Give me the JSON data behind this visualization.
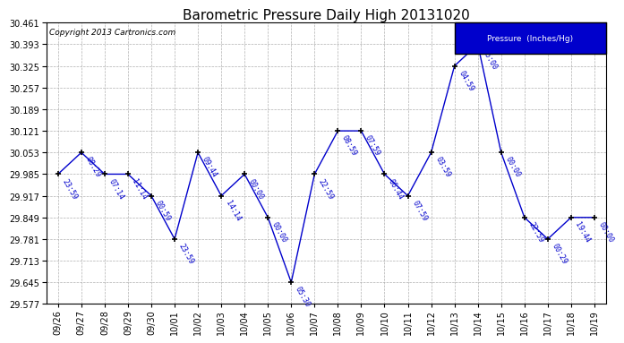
{
  "title": "Barometric Pressure Daily High 20131020",
  "ylabel": "Pressure  (Inches/Hg)",
  "copyright": "Copyright 2013 Cartronics.com",
  "x_labels": [
    "09/26",
    "09/27",
    "09/28",
    "09/29",
    "09/30",
    "10/01",
    "10/02",
    "10/03",
    "10/04",
    "10/05",
    "10/06",
    "10/07",
    "10/08",
    "10/09",
    "10/10",
    "10/11",
    "10/12",
    "10/13",
    "10/14",
    "10/15",
    "10/16",
    "10/17",
    "10/18",
    "10/19"
  ],
  "x_vals": [
    0,
    1,
    2,
    3,
    4,
    5,
    6,
    7,
    8,
    9,
    10,
    11,
    12,
    13,
    14,
    15,
    16,
    17,
    18,
    19,
    20,
    21,
    22,
    23
  ],
  "y_vals": [
    29.985,
    30.053,
    29.985,
    29.985,
    29.917,
    29.781,
    30.053,
    29.917,
    29.985,
    29.849,
    29.645,
    29.985,
    30.121,
    30.121,
    29.985,
    29.917,
    30.053,
    30.325,
    30.393,
    30.053,
    29.849,
    29.781,
    29.849,
    29.849
  ],
  "time_labels": [
    "23:59",
    "08:29",
    "07:14",
    "11:14",
    "00:59",
    "23:59",
    "09:44",
    "14:14",
    "00:00",
    "00:00",
    "05:30",
    "22:59",
    "08:59",
    "07:59",
    "06:44",
    "07:59",
    "03:59",
    "04:59",
    "05:00",
    "00:00",
    "22:59",
    "00:29",
    "19:44",
    "00:00"
  ],
  "line_color": "#0000CC",
  "bg_color": "#ffffff",
  "grid_color": "#b0b0b0",
  "ylim_min": 29.577,
  "ylim_max": 30.461,
  "ytick_step": 0.068,
  "legend_bg": "#0000CC",
  "legend_text": "#ffffff",
  "title_fontsize": 11,
  "tick_fontsize": 7,
  "label_fontsize": 6
}
